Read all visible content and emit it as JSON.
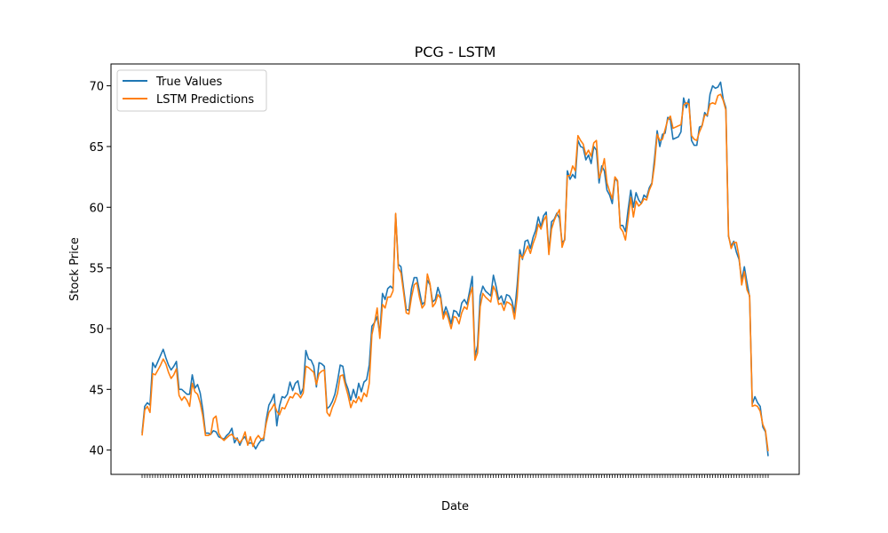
{
  "chart_data": {
    "type": "line",
    "title": "PCG - LSTM",
    "xlabel": "Date",
    "ylabel": "Stock Price",
    "ylim": [
      38.0,
      71.8
    ],
    "yticks": [
      40,
      45,
      50,
      55,
      60,
      65,
      70
    ],
    "grid": false,
    "legend_position": "top-left",
    "x_tick_labels_note": "",
    "series": [
      {
        "name": "True Values",
        "color": "#1f77b4",
        "values": [
          41.4,
          43.6,
          43.9,
          43.7,
          47.2,
          46.8,
          47.3,
          47.8,
          48.3,
          47.6,
          47.0,
          46.6,
          46.9,
          47.3,
          45.0,
          45.0,
          44.8,
          44.6,
          44.6,
          46.2,
          45.1,
          45.4,
          44.7,
          43.3,
          41.4,
          41.4,
          41.3,
          41.6,
          41.5,
          41.1,
          41.0,
          40.9,
          41.2,
          41.4,
          41.8,
          40.6,
          41.0,
          40.4,
          40.9,
          41.1,
          40.5,
          40.6,
          40.5,
          40.1,
          40.5,
          40.8,
          40.8,
          42.5,
          43.7,
          44.1,
          44.6,
          42.0,
          43.6,
          44.4,
          44.3,
          44.6,
          45.6,
          44.9,
          45.5,
          45.7,
          44.6,
          45.1,
          48.2,
          47.5,
          47.4,
          46.9,
          45.2,
          47.2,
          47.1,
          46.9,
          43.4,
          43.6,
          44.0,
          44.6,
          45.7,
          47.0,
          46.9,
          45.6,
          45.0,
          44.1,
          45.0,
          44.3,
          45.5,
          44.8,
          45.6,
          45.8,
          47.0,
          50.2,
          50.5,
          51.0,
          49.5,
          52.9,
          52.4,
          53.3,
          53.5,
          53.3,
          59.4,
          55.3,
          55.1,
          53.3,
          51.6,
          51.5,
          53.3,
          54.2,
          54.2,
          53.1,
          52.0,
          52.2,
          54.0,
          53.6,
          52.2,
          52.4,
          53.4,
          52.7,
          51.1,
          51.8,
          51.2,
          50.4,
          51.5,
          51.4,
          51.0,
          52.1,
          52.4,
          52.0,
          53.1,
          54.3,
          47.7,
          48.6,
          52.7,
          53.5,
          53.1,
          52.9,
          52.7,
          54.4,
          53.5,
          52.4,
          52.7,
          52.0,
          52.8,
          52.7,
          52.3,
          51.3,
          53.6,
          56.5,
          55.7,
          57.2,
          57.3,
          56.6,
          57.5,
          58.1,
          59.2,
          58.4,
          59.3,
          59.6,
          56.3,
          58.8,
          59.0,
          59.5,
          59.1,
          57.1,
          57.3,
          63.0,
          62.3,
          62.7,
          62.4,
          65.5,
          65.0,
          64.9,
          63.9,
          64.3,
          63.6,
          65.0,
          64.7,
          62.0,
          63.4,
          63.0,
          61.4,
          61.0,
          60.3,
          62.4,
          62.1,
          58.5,
          58.5,
          58.0,
          59.8,
          61.4,
          60.0,
          61.2,
          60.6,
          60.3,
          61.0,
          60.8,
          61.6,
          62.0,
          64.0,
          66.3,
          65.0,
          66.0,
          66.1,
          67.4,
          67.2,
          65.6,
          65.7,
          65.8,
          66.2,
          69.0,
          68.2,
          68.9,
          65.5,
          65.1,
          65.1,
          66.6,
          66.7,
          67.8,
          67.5,
          69.3,
          70.0,
          69.8,
          69.9,
          70.3,
          68.9,
          68.2,
          57.6,
          56.8,
          57.2,
          56.3,
          55.7,
          54.0,
          55.1,
          53.8,
          52.6,
          43.8,
          44.4,
          43.9,
          43.6,
          41.9,
          41.5,
          39.5
        ]
      },
      {
        "name": "LSTM Predictions",
        "color": "#ff7f0e",
        "values": [
          41.2,
          43.3,
          43.6,
          43.1,
          46.3,
          46.2,
          46.6,
          47.0,
          47.5,
          47.1,
          46.4,
          45.9,
          46.2,
          46.7,
          44.5,
          44.1,
          44.4,
          44.1,
          43.6,
          45.5,
          44.8,
          44.6,
          43.9,
          42.8,
          41.2,
          41.2,
          41.3,
          42.6,
          42.8,
          41.4,
          41.0,
          40.8,
          41.0,
          41.2,
          41.3,
          41.0,
          40.9,
          40.6,
          40.9,
          41.5,
          40.4,
          41.1,
          40.3,
          40.9,
          41.2,
          40.9,
          41.0,
          42.2,
          43.1,
          43.4,
          43.8,
          43.2,
          42.9,
          43.5,
          43.4,
          43.9,
          44.4,
          44.3,
          44.7,
          44.6,
          44.3,
          44.7,
          46.9,
          46.8,
          46.6,
          46.4,
          45.4,
          46.3,
          46.5,
          46.6,
          43.1,
          42.8,
          43.5,
          44.0,
          44.7,
          46.1,
          46.2,
          45.3,
          44.5,
          43.5,
          44.1,
          43.9,
          44.4,
          44.0,
          44.7,
          44.4,
          45.5,
          49.5,
          50.5,
          51.7,
          49.2,
          52.0,
          51.7,
          52.6,
          52.6,
          53.1,
          59.5,
          55.0,
          54.6,
          53.0,
          51.3,
          51.2,
          52.6,
          53.6,
          53.8,
          52.6,
          51.7,
          52.0,
          54.5,
          53.7,
          51.8,
          52.1,
          52.8,
          52.5,
          50.8,
          51.4,
          50.8,
          50.0,
          51.0,
          50.9,
          50.4,
          51.3,
          51.8,
          51.6,
          52.7,
          53.4,
          47.4,
          48.0,
          51.8,
          52.9,
          52.6,
          52.4,
          52.2,
          53.5,
          53.0,
          52.0,
          52.1,
          51.5,
          52.2,
          52.1,
          51.9,
          50.8,
          52.6,
          56.1,
          55.8,
          56.3,
          56.8,
          56.2,
          57.0,
          57.6,
          58.6,
          58.2,
          58.9,
          59.3,
          56.1,
          58.2,
          58.9,
          59.4,
          59.8,
          56.7,
          57.4,
          62.6,
          62.6,
          63.4,
          63.0,
          65.9,
          65.5,
          65.2,
          64.3,
          64.7,
          64.2,
          65.3,
          65.5,
          62.4,
          63.0,
          64.0,
          62.0,
          61.3,
          60.7,
          62.5,
          62.2,
          58.3,
          58.0,
          57.3,
          59.0,
          60.8,
          59.2,
          60.5,
          60.1,
          60.3,
          60.7,
          60.6,
          61.4,
          61.9,
          63.5,
          66.0,
          65.5,
          65.6,
          66.4,
          67.2,
          67.5,
          66.5,
          66.6,
          66.7,
          66.8,
          68.4,
          68.6,
          68.5,
          65.9,
          65.6,
          65.5,
          66.2,
          66.7,
          67.6,
          67.6,
          68.5,
          68.6,
          68.5,
          69.2,
          69.3,
          68.8,
          68.0,
          57.7,
          56.6,
          57.1,
          57.1,
          55.9,
          53.6,
          54.7,
          53.2,
          52.7,
          43.6,
          43.7,
          43.6,
          43.2,
          42.1,
          41.6,
          39.9
        ]
      }
    ]
  }
}
